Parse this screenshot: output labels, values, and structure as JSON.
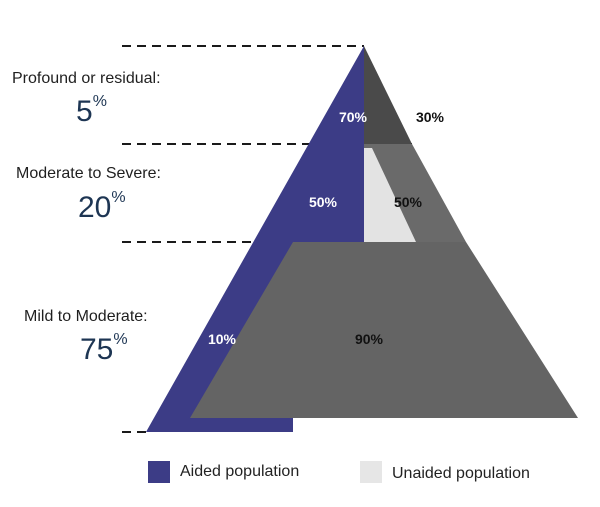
{
  "tiers": [
    {
      "label": "Profound or residual:",
      "value": "5",
      "unit": "%",
      "aided": "70%",
      "unaided": "30%"
    },
    {
      "label": "Moderate to Severe:",
      "value": "20",
      "unit": "%",
      "aided": "50%",
      "unaided": "50%"
    },
    {
      "label": "Mild to Moderate:",
      "value": "75",
      "unit": "%",
      "aided": "10%",
      "unaided": "90%"
    }
  ],
  "legend": {
    "aided": "Aided population",
    "unaided": "Unaided population"
  },
  "colors": {
    "aided": "#3c3c86",
    "unaided_swatch": "#e6e6e6",
    "unaided_top": "#4a4a4a",
    "unaided_mid_fill": "#e3e3e3",
    "unaided_bottom": "#646464",
    "label_text": "#1f1f1f",
    "pct_text": "#1d3553"
  }
}
